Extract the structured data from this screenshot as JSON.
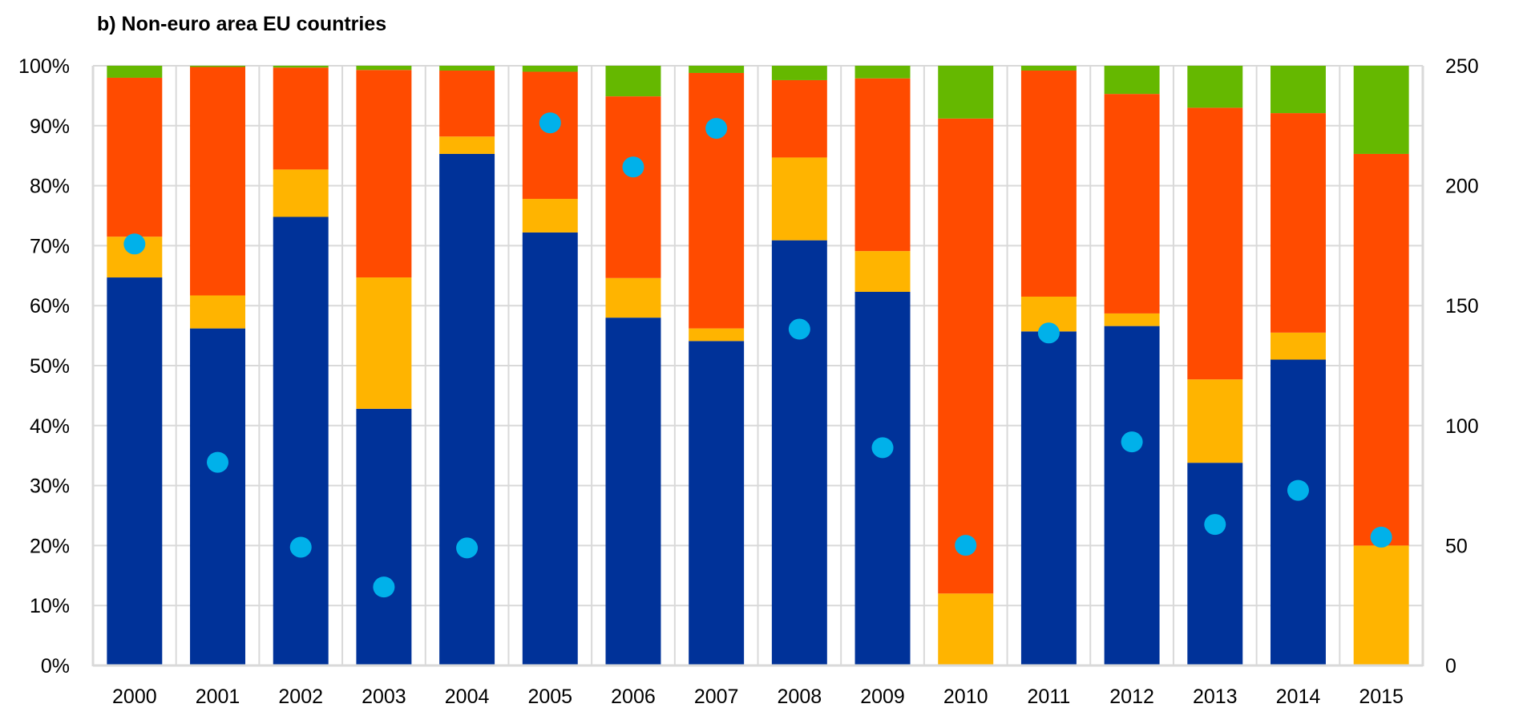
{
  "chart_data": {
    "type": "bar",
    "stacked": true,
    "normalized_percent": true,
    "title": "b) Non-euro area EU countries",
    "xlabel": "",
    "ylabel": "",
    "y2label": "",
    "categories": [
      "2000",
      "2001",
      "2002",
      "2003",
      "2004",
      "2005",
      "2006",
      "2007",
      "2008",
      "2009",
      "2010",
      "2011",
      "2012",
      "2013",
      "2014",
      "2015"
    ],
    "ylim": [
      0,
      100
    ],
    "y_ticks": [
      0,
      10,
      20,
      30,
      40,
      50,
      60,
      70,
      80,
      90,
      100
    ],
    "y_tick_labels": [
      "0%",
      "10%",
      "20%",
      "30%",
      "40%",
      "50%",
      "60%",
      "70%",
      "80%",
      "90%",
      "100%"
    ],
    "y2lim": [
      0,
      250
    ],
    "y2_ticks": [
      0,
      50,
      100,
      150,
      200,
      250
    ],
    "y2_tick_labels": [
      "0",
      "50",
      "100",
      "150",
      "200",
      "250"
    ],
    "grid": true,
    "legend": "none",
    "series": [
      {
        "id": "series-1",
        "kind": "bar",
        "axis": "left",
        "color": "#003299",
        "values": [
          64.7,
          56.2,
          74.8,
          42.8,
          85.3,
          72.2,
          58.0,
          54.1,
          70.9,
          62.3,
          0.0,
          55.7,
          56.6,
          33.8,
          51.0,
          0.0
        ]
      },
      {
        "id": "series-2",
        "kind": "bar",
        "axis": "left",
        "color": "#FFB400",
        "values": [
          6.8,
          5.5,
          7.9,
          21.9,
          2.9,
          5.6,
          6.6,
          2.1,
          13.8,
          6.8,
          12.0,
          5.8,
          2.1,
          13.9,
          4.5,
          20.0
        ]
      },
      {
        "id": "series-3",
        "kind": "bar",
        "axis": "left",
        "color": "#FF4B00",
        "values": [
          26.5,
          38.1,
          17.0,
          34.6,
          11.0,
          21.2,
          30.3,
          42.6,
          12.9,
          28.8,
          79.2,
          37.7,
          36.6,
          45.3,
          36.6,
          65.3
        ]
      },
      {
        "id": "series-4",
        "kind": "bar",
        "axis": "left",
        "color": "#65B800",
        "values": [
          2.0,
          0.2,
          0.3,
          0.7,
          0.8,
          1.0,
          5.1,
          1.2,
          2.4,
          2.1,
          8.8,
          0.8,
          4.7,
          7.0,
          7.9,
          14.7
        ]
      },
      {
        "id": "series-5",
        "kind": "dot",
        "axis": "right",
        "color": "#00B1EA",
        "values": [
          175.7,
          84.7,
          49.3,
          32.7,
          49.0,
          226.2,
          207.8,
          223.9,
          140.2,
          90.8,
          50.1,
          138.6,
          93.2,
          58.8,
          73.0,
          53.5
        ]
      }
    ],
    "grid_color": "#D9D9D9"
  }
}
